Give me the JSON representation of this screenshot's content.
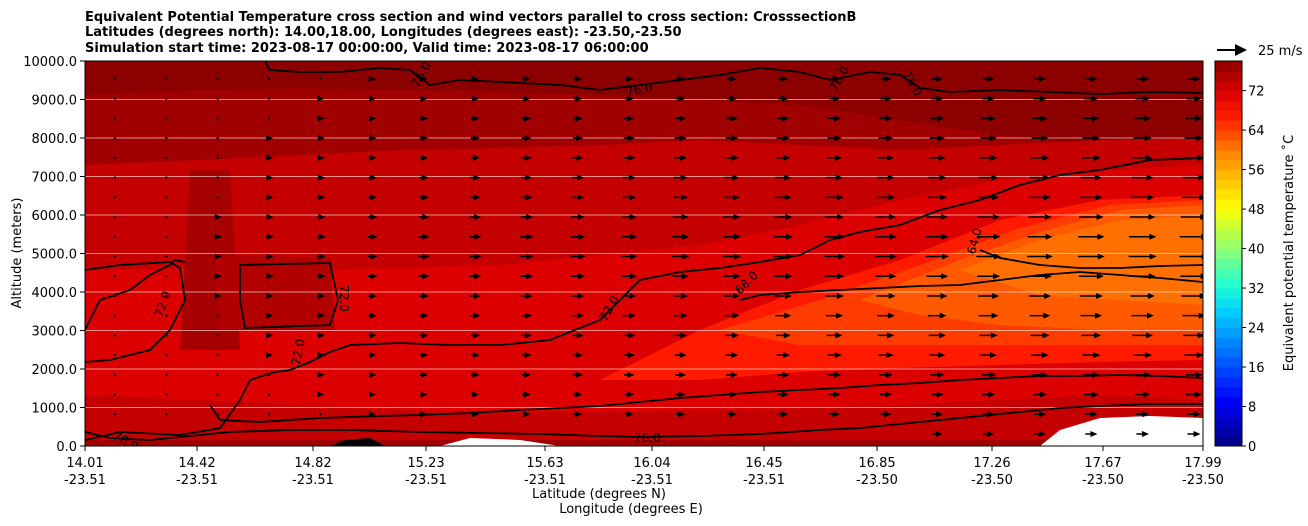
{
  "chart_data": {
    "type": "contourf",
    "title_lines": [
      "Equivalent Potential Temperature cross section and wind vectors parallel to cross section: CrosssectionB",
      "Latitudes (degrees north): 14.00,18.00, Longitudes (degrees east): -23.50,-23.50",
      "Simulation start time: 2023-08-17 00:00:00, Valid time: 2023-08-17 06:00:00"
    ],
    "xlabel_lines": [
      "Latitude (degrees N)",
      "Longitude (degrees E)"
    ],
    "ylabel": "Altitude (meters)",
    "x_ticks": [
      {
        "lat": "14.01",
        "lon": "-23.51"
      },
      {
        "lat": "14.42",
        "lon": "-23.51"
      },
      {
        "lat": "14.82",
        "lon": "-23.51"
      },
      {
        "lat": "15.23",
        "lon": "-23.51"
      },
      {
        "lat": "15.63",
        "lon": "-23.51"
      },
      {
        "lat": "16.04",
        "lon": "-23.51"
      },
      {
        "lat": "16.45",
        "lon": "-23.51"
      },
      {
        "lat": "16.85",
        "lon": "-23.50"
      },
      {
        "lat": "17.26",
        "lon": "-23.50"
      },
      {
        "lat": "17.67",
        "lon": "-23.50"
      },
      {
        "lat": "17.99",
        "lon": "-23.50"
      }
    ],
    "y_ticks": [
      "0.0",
      "1000.0",
      "2000.0",
      "3000.0",
      "4000.0",
      "5000.0",
      "6000.0",
      "7000.0",
      "8000.0",
      "9000.0",
      "10000.0"
    ],
    "ylim": [
      0,
      10000
    ],
    "colorbar": {
      "label": "Equivalent potential temperature ˚C",
      "ticks": [
        "0",
        "8",
        "16",
        "24",
        "32",
        "40",
        "48",
        "56",
        "64",
        "72"
      ],
      "range": [
        0,
        78
      ]
    },
    "wind_key": "25 m/s",
    "contour_labels": [
      "76.0",
      "76.0",
      "76.0",
      "76.0",
      "76.0",
      "76.0",
      "72.0",
      "72.0",
      "72.0",
      "72.0",
      "68.0",
      "64.0"
    ],
    "grid": true
  }
}
